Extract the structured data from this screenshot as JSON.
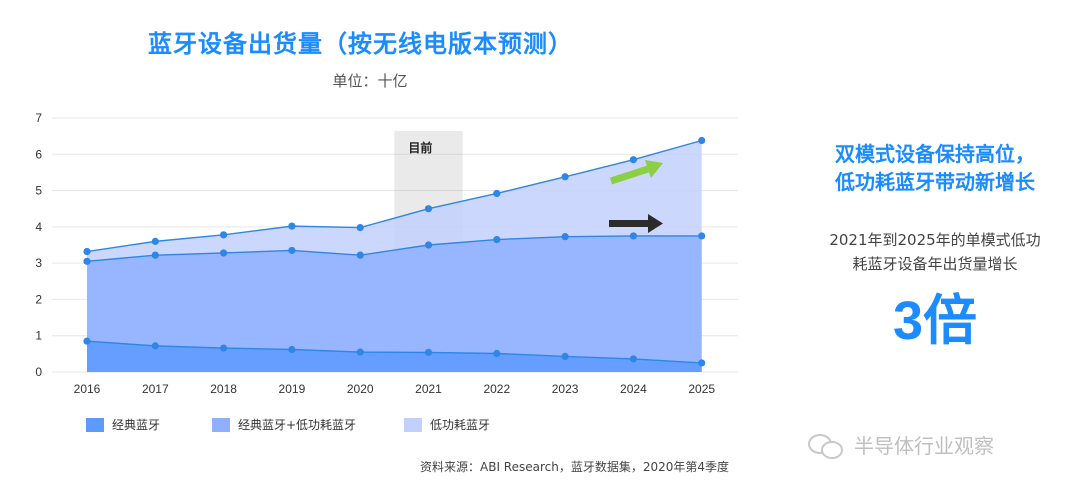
{
  "title": "蓝牙设备出货量（按无线电版本预测）",
  "unit_label": "单位：十亿",
  "current_marker_label": "目前",
  "side_headline_line1": "双模式设备保持高位，",
  "side_headline_line2": "低功耗蓝牙带动新增长",
  "side_sub_line1": "2021年到2025年的单模式低功",
  "side_sub_line2": "耗蓝牙设备年出货量增长",
  "side_big": "3倍",
  "source": "资料来源：ABI Research，蓝牙数据集，2020年第4季度",
  "watermark": "半导体行业观察",
  "colors": {
    "classic": "#5c9aff",
    "dual": "#8fb0ff",
    "le": "#c2d0fd",
    "line": "#2f86e6",
    "title": "#1a8cff",
    "arrow_green": "#8ccf45",
    "arrow_dark": "#2b2b2b",
    "current_band": "#9e9e9e"
  },
  "legend": [
    {
      "label": "经典蓝牙",
      "color": "#5c9aff"
    },
    {
      "label": "经典蓝牙+低功耗蓝牙",
      "color": "#8fb0ff"
    },
    {
      "label": "低功耗蓝牙",
      "color": "#c2d0fd"
    }
  ],
  "chart_data": {
    "type": "area",
    "categories": [
      "2016",
      "2017",
      "2018",
      "2019",
      "2020",
      "2021",
      "2022",
      "2023",
      "2024",
      "2025"
    ],
    "series": [
      {
        "name": "经典蓝牙",
        "values": [
          0.85,
          0.72,
          0.66,
          0.62,
          0.55,
          0.54,
          0.51,
          0.43,
          0.36,
          0.25
        ]
      },
      {
        "name": "经典蓝牙+低功耗蓝牙",
        "values": [
          3.05,
          3.22,
          3.28,
          3.35,
          3.22,
          3.5,
          3.65,
          3.73,
          3.75,
          3.75
        ]
      },
      {
        "name": "低功耗蓝牙",
        "values": [
          3.32,
          3.6,
          3.78,
          4.02,
          3.98,
          4.5,
          4.92,
          5.38,
          5.85,
          6.38
        ]
      }
    ],
    "yticks": [
      0,
      1,
      2,
      3,
      4,
      5,
      6,
      7
    ],
    "ylim": [
      0,
      7
    ],
    "stacking": "cumulative",
    "grid": true,
    "highlight_band": {
      "from": "2020.5",
      "to": "2021.5",
      "label": "目前"
    }
  }
}
